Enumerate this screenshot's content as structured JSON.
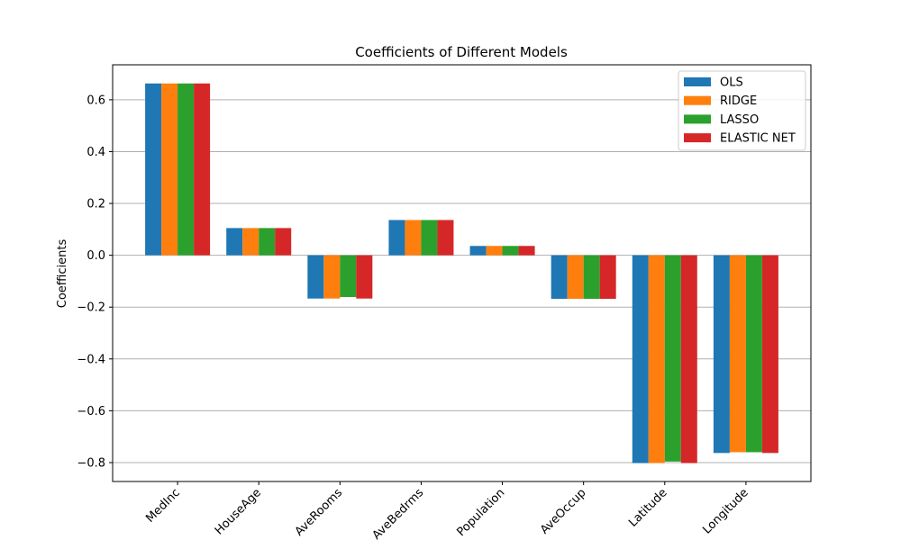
{
  "chart_data": {
    "type": "bar",
    "title": "Coefficients of Different Models",
    "xlabel": "",
    "ylabel": "Coefficients",
    "categories": [
      "MedInc",
      "HouseAge",
      "AveRooms",
      "AveBedrms",
      "Population",
      "AveOccup",
      "Latitude",
      "Longitude"
    ],
    "series": [
      {
        "name": "OLS",
        "color": "#1f77b4",
        "values": [
          0.663,
          0.105,
          -0.167,
          0.136,
          0.036,
          -0.168,
          -0.802,
          -0.763
        ]
      },
      {
        "name": "RIDGE",
        "color": "#ff7f0e",
        "values": [
          0.663,
          0.105,
          -0.167,
          0.136,
          0.036,
          -0.168,
          -0.802,
          -0.76
        ]
      },
      {
        "name": "LASSO",
        "color": "#2ca02c",
        "values": [
          0.663,
          0.105,
          -0.161,
          0.136,
          0.036,
          -0.168,
          -0.796,
          -0.76
        ]
      },
      {
        "name": "ELASTIC NET",
        "color": "#d62728",
        "values": [
          0.663,
          0.105,
          -0.167,
          0.136,
          0.036,
          -0.168,
          -0.802,
          -0.763
        ]
      }
    ],
    "yticks": [
      "0.6",
      "0.4",
      "0.2",
      "0.0",
      "−0.2",
      "−0.4",
      "−0.6",
      "−0.8"
    ],
    "ytick_values": [
      0.6,
      0.4,
      0.2,
      0.0,
      -0.2,
      -0.4,
      -0.6,
      -0.8
    ],
    "ylim": [
      -0.873,
      0.735
    ],
    "grid": "y",
    "legend_position": "top-right"
  }
}
